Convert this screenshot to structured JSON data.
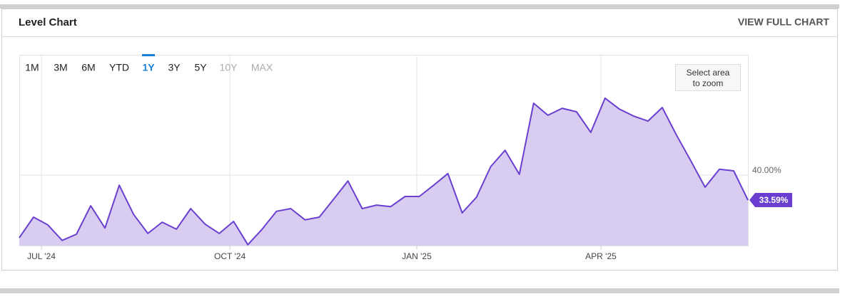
{
  "header": {
    "title": "Level Chart",
    "link": "VIEW FULL CHART"
  },
  "range_buttons": [
    "1M",
    "3M",
    "6M",
    "YTD",
    "1Y",
    "3Y",
    "5Y",
    "10Y",
    "MAX"
  ],
  "selected_range_index": 4,
  "disabled_range_indices": [
    7,
    8
  ],
  "zoom_hint": "Select area to zoom",
  "chart_data": {
    "type": "area",
    "x": [
      0,
      1,
      2,
      3,
      4,
      5,
      6,
      7,
      8,
      9,
      10,
      11,
      12,
      13,
      14,
      15,
      16,
      17,
      18,
      19,
      20,
      21,
      22,
      23,
      24,
      25,
      26,
      27,
      28,
      29,
      30,
      31,
      32,
      33,
      34,
      35,
      36,
      37,
      38,
      39,
      40,
      41,
      42,
      43,
      44,
      45,
      46,
      47,
      48,
      49,
      50,
      51
    ],
    "values": [
      23.9,
      29.2,
      27.2,
      23.2,
      24.8,
      32.1,
      26.4,
      37.4,
      29.9,
      25.0,
      27.9,
      26.1,
      31.4,
      27.4,
      25.0,
      28.1,
      22.1,
      26.1,
      30.7,
      31.4,
      28.5,
      29.2,
      33.8,
      38.5,
      31.4,
      32.3,
      31.9,
      34.5,
      34.5,
      37.4,
      40.4,
      30.3,
      34.3,
      42.2,
      46.4,
      40.2,
      58.5,
      55.4,
      57.2,
      56.3,
      51.0,
      59.8,
      57.0,
      55.2,
      53.9,
      57.4,
      50.3,
      43.7,
      36.9,
      41.5,
      41.1,
      33.59
    ],
    "end_label": "33.59%",
    "color": "#6a3fd0",
    "fill": "#d8cdf0",
    "xlim": [
      0,
      51
    ],
    "xticks": [
      {
        "value": 1.55,
        "label": "JUL '24"
      },
      {
        "value": 14.74,
        "label": "OCT '24"
      },
      {
        "value": 27.82,
        "label": "JAN '25"
      },
      {
        "value": 40.71,
        "label": "APR '25"
      }
    ],
    "ylim": [
      21.87,
      70.77
    ],
    "yticks": [
      {
        "value": 40,
        "label": "40.00%"
      }
    ],
    "grid": true
  }
}
